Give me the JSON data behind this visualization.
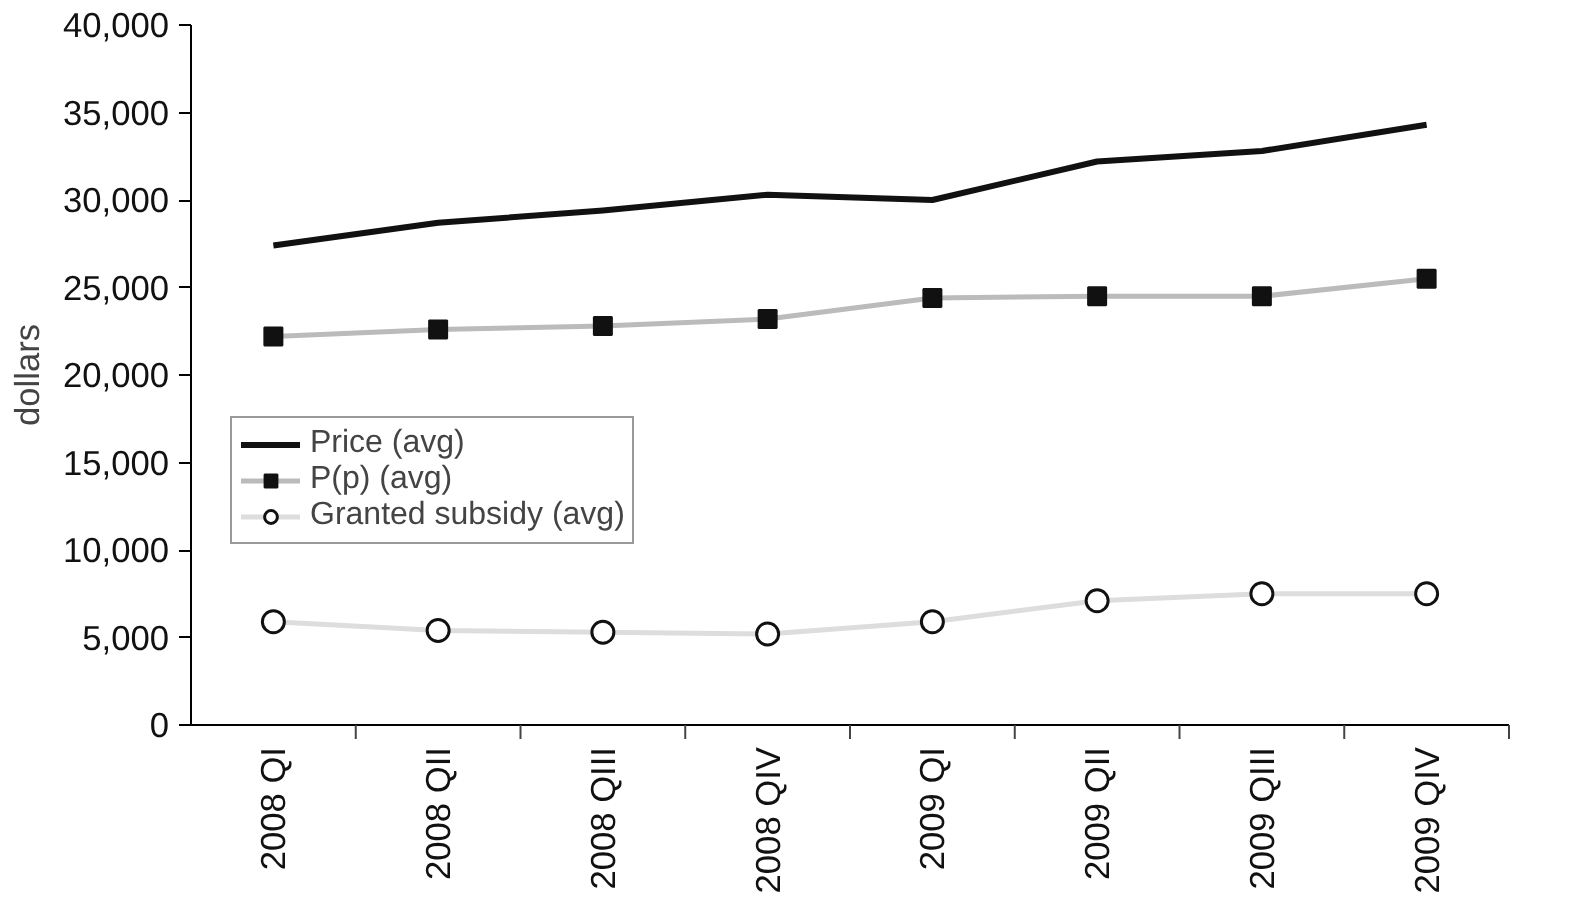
{
  "chart_data": {
    "type": "line",
    "ylabel": "dollars",
    "categories": [
      "2008 QI",
      "2008 QII",
      "2008 QIII",
      "2008 QIV",
      "2009 QI",
      "2009 QII",
      "2009 QIII",
      "2009 QIV"
    ],
    "series": [
      {
        "name": "Price (avg)",
        "color": "#111111",
        "marker": "none",
        "values": [
          27400,
          28700,
          29400,
          30300,
          30000,
          32200,
          32800,
          34300
        ]
      },
      {
        "name": "P(p) (avg)",
        "color": "#bbbbbb",
        "marker": "square",
        "values": [
          22200,
          22600,
          22800,
          23200,
          24400,
          24500,
          24500,
          25500
        ]
      },
      {
        "name": "Granted subsidy (avg)",
        "color": "#dddddd",
        "marker": "circle",
        "values": [
          5900,
          5400,
          5300,
          5200,
          5900,
          7100,
          7500,
          7500
        ]
      }
    ],
    "ylim": [
      0,
      40000
    ],
    "yticks": [
      {
        "value": 0,
        "label": "0"
      },
      {
        "value": 5000,
        "label": "5,000"
      },
      {
        "value": 10000,
        "label": "10,000"
      },
      {
        "value": 15000,
        "label": "15,000"
      },
      {
        "value": 20000,
        "label": "20,000"
      },
      {
        "value": 25000,
        "label": "25,000"
      },
      {
        "value": 30000,
        "label": "30,000"
      },
      {
        "value": 35000,
        "label": "35,000"
      },
      {
        "value": 40000,
        "label": "40,000"
      }
    ],
    "grid": false,
    "legend": "left"
  }
}
